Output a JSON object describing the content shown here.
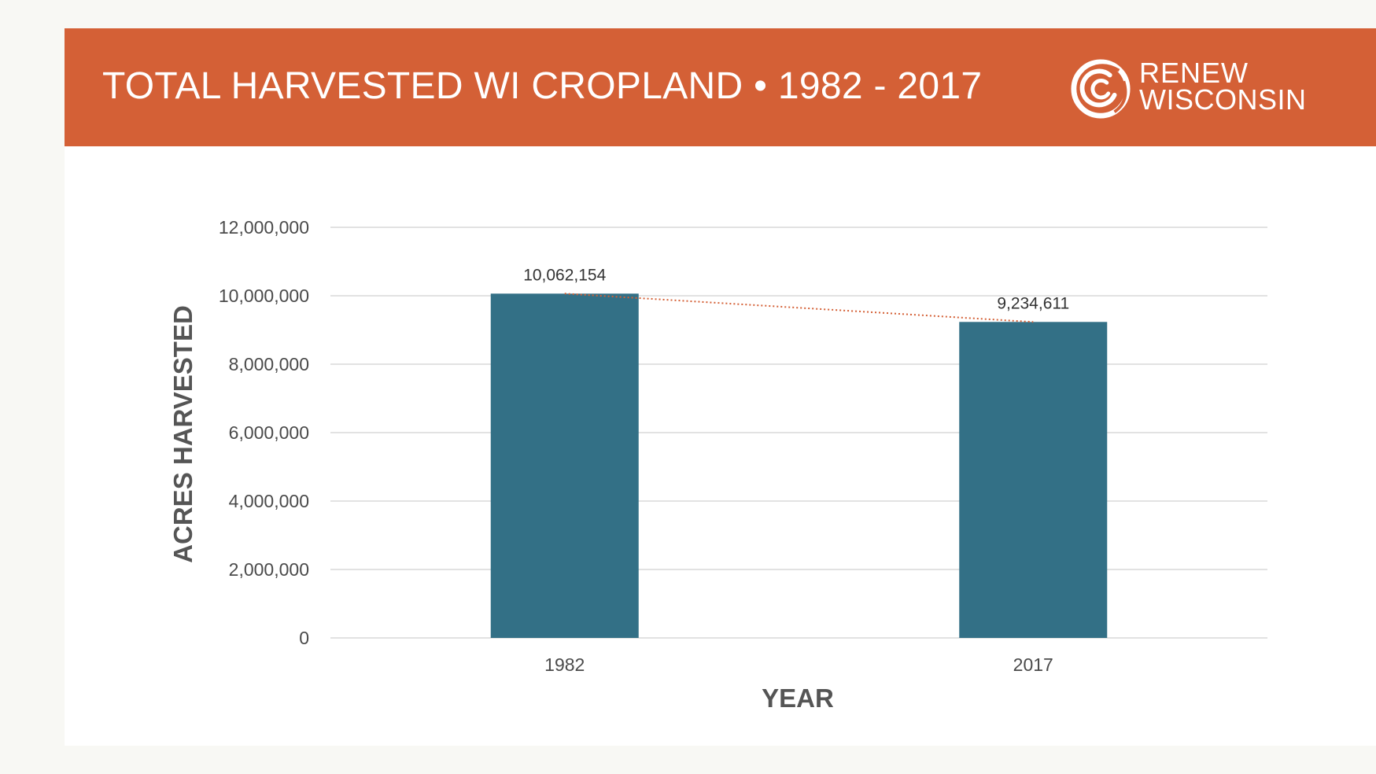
{
  "header": {
    "title": "TOTAL HARVESTED WI CROPLAND • 1982 - 2017",
    "logo_line1": "RENEW",
    "logo_line2": "WISCONSIN"
  },
  "colors": {
    "banner": "#d46036",
    "bar": "#337086",
    "trendline": "#d46036",
    "gridline": "#d9d9d9"
  },
  "chart_data": {
    "type": "bar",
    "title": "TOTAL HARVESTED WI CROPLAND • 1982 - 2017",
    "xlabel": "YEAR",
    "ylabel": "ACRES HARVESTED",
    "categories": [
      "1982",
      "2017"
    ],
    "values": [
      10062154,
      9234611
    ],
    "value_labels": [
      "10,062,154",
      "9,234,611"
    ],
    "ylim": [
      0,
      12000000
    ],
    "yticks": [
      0,
      2000000,
      4000000,
      6000000,
      8000000,
      10000000,
      12000000
    ],
    "ytick_labels": [
      "0",
      "2,000,000",
      "4,000,000",
      "6,000,000",
      "8,000,000",
      "10,000,000",
      "12,000,000"
    ],
    "grid": true,
    "trendline": "linear, dotted",
    "legend": "none"
  }
}
